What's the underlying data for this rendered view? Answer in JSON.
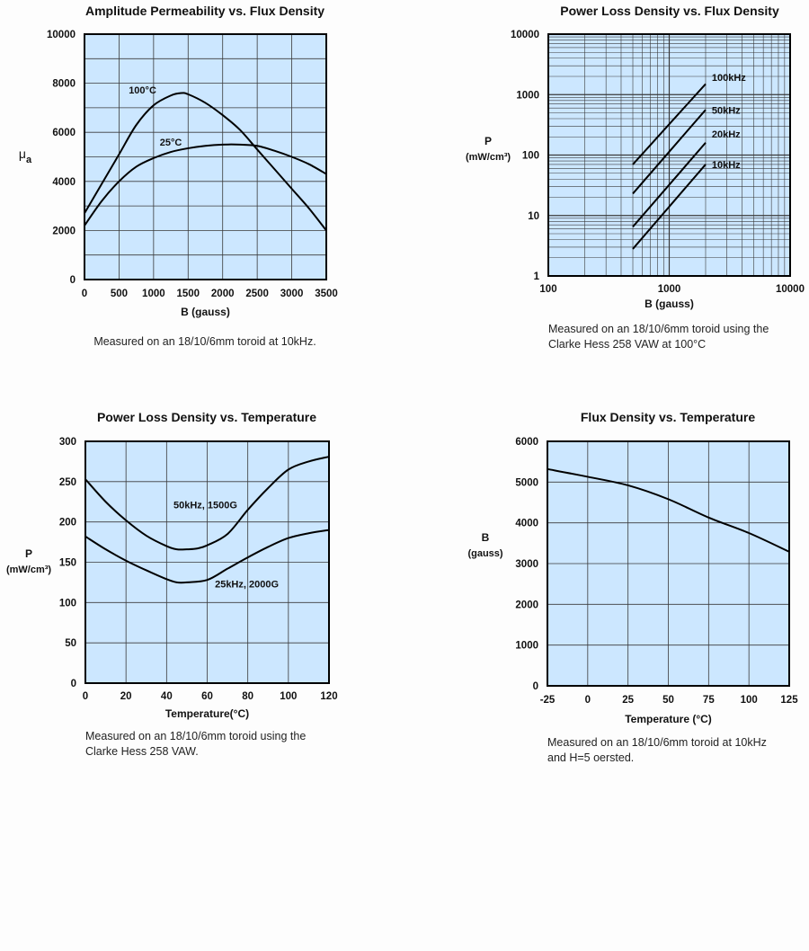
{
  "colors": {
    "plot_bg": "#cce7ff",
    "grid": "#3a3a3a",
    "curve": "#000000"
  },
  "chart_data": [
    {
      "type": "line",
      "title": "Amplitude  Permeability vs. Flux Density",
      "xlabel": "B (gauss)",
      "ylabel": "μ",
      "ylabel_sub": "a",
      "xlim": [
        0,
        3500
      ],
      "ylim": [
        0,
        10000
      ],
      "xticks": [
        0,
        500,
        1000,
        1500,
        2000,
        2500,
        3000,
        3500
      ],
      "yticks": [
        0,
        2000,
        4000,
        6000,
        8000,
        10000
      ],
      "xgrid_step": 500,
      "ygrid_step": 1000,
      "grid": true,
      "series": [
        {
          "name": "100°C",
          "x": [
            0,
            250,
            500,
            750,
            1000,
            1250,
            1400,
            1500,
            1750,
            2000,
            2250,
            2500,
            2750,
            3000,
            3250,
            3500
          ],
          "y": [
            2700,
            3900,
            5100,
            6300,
            7100,
            7500,
            7600,
            7550,
            7200,
            6700,
            6100,
            5300,
            4500,
            3700,
            2900,
            2000
          ]
        },
        {
          "name": "25°C",
          "x": [
            0,
            250,
            500,
            750,
            1000,
            1250,
            1500,
            1750,
            2000,
            2250,
            2500,
            2750,
            3000,
            3250,
            3500
          ],
          "y": [
            2200,
            3200,
            4000,
            4600,
            4950,
            5200,
            5350,
            5450,
            5500,
            5500,
            5450,
            5250,
            5000,
            4700,
            4300
          ]
        }
      ],
      "annotations": [
        {
          "text": "100°C",
          "x": 640,
          "y": 7580
        },
        {
          "text": "25°C",
          "x": 1090,
          "y": 5460
        }
      ],
      "caption": [
        "Measured on an 18/10/6mm toroid at 10kHz."
      ]
    },
    {
      "type": "line",
      "title": "Power Loss Density vs. Flux Density",
      "xlabel": "B (gauss)",
      "ylabel": "P",
      "ylabel_unit": "(mW/cm³)",
      "xscale": "log",
      "yscale": "log",
      "xlim": [
        100,
        10000
      ],
      "ylim": [
        1,
        10000
      ],
      "xticks": [
        100,
        1000,
        10000
      ],
      "yticks": [
        1,
        10,
        100,
        1000,
        10000
      ],
      "grid": true,
      "series": [
        {
          "name": "100kHz",
          "x": [
            500,
            2000
          ],
          "y": [
            70,
            1500
          ]
        },
        {
          "name": "50kHz",
          "x": [
            500,
            2000
          ],
          "y": [
            23,
            560
          ]
        },
        {
          "name": "20kHz",
          "x": [
            500,
            2000
          ],
          "y": [
            6.5,
            160
          ]
        },
        {
          "name": "10kHz",
          "x": [
            500,
            2000
          ],
          "y": [
            2.8,
            70
          ]
        }
      ],
      "annotations": [
        {
          "text": "100kHz",
          "x": 2250,
          "y": 1700
        },
        {
          "text": "50kHz",
          "x": 2250,
          "y": 480
        },
        {
          "text": "20kHz",
          "x": 2250,
          "y": 195
        },
        {
          "text": "10kHz",
          "x": 2250,
          "y": 61
        }
      ],
      "caption": [
        "Measured on an 18/10/6mm toroid using the",
        "Clarke Hess 258 VAW at 100°C"
      ]
    },
    {
      "type": "line",
      "title": "Power Loss Density vs. Temperature",
      "xlabel": "Temperature(°C)",
      "ylabel": "P",
      "ylabel_unit": "(mW/cm³)",
      "xlim": [
        0,
        120
      ],
      "ylim": [
        0,
        300
      ],
      "xticks": [
        0,
        20,
        40,
        60,
        80,
        100,
        120
      ],
      "yticks": [
        0,
        50,
        100,
        150,
        200,
        250,
        300
      ],
      "xgrid_step": 20,
      "ygrid_step": 50,
      "grid": true,
      "series": [
        {
          "name": "50kHz, 1500G",
          "x": [
            0,
            10,
            20,
            30,
            40,
            45,
            50,
            55,
            60,
            70,
            80,
            90,
            100,
            110,
            120
          ],
          "y": [
            253,
            225,
            202,
            183,
            170,
            166,
            166,
            167,
            171,
            185,
            215,
            242,
            265,
            275,
            281
          ]
        },
        {
          "name": "25kHz, 2000G",
          "x": [
            0,
            10,
            20,
            30,
            40,
            45,
            50,
            60,
            70,
            80,
            90,
            100,
            110,
            120
          ],
          "y": [
            182,
            166,
            152,
            140,
            129,
            125,
            125,
            128,
            142,
            156,
            169,
            180,
            186,
            190
          ]
        }
      ],
      "annotations": [
        {
          "text": "50kHz, 1500G",
          "x": 43.4,
          "y": 217
        },
        {
          "text": "25kHz, 2000G",
          "x": 63.8,
          "y": 119
        }
      ],
      "caption": [
        "Measured on an 18/10/6mm  toroid using the",
        "Clarke Hess 258 VAW."
      ]
    },
    {
      "type": "line",
      "title": "Flux Density vs. Temperature",
      "xlabel": "Temperature (°C)",
      "ylabel": "B",
      "ylabel_unit": "(gauss)",
      "xlim": [
        -25,
        125
      ],
      "ylim": [
        0,
        6000
      ],
      "xticks": [
        -25,
        0,
        25,
        50,
        75,
        100,
        125
      ],
      "yticks": [
        0,
        1000,
        2000,
        3000,
        4000,
        5000,
        6000
      ],
      "xgrid_step": 25,
      "ygrid_step": 1000,
      "grid": true,
      "series": [
        {
          "x": [
            -25,
            0,
            25,
            50,
            75,
            100,
            125
          ],
          "y": [
            5320,
            5130,
            4920,
            4580,
            4130,
            3750,
            3290
          ]
        }
      ],
      "annotations": [],
      "caption": [
        "Measured on an 18/10/6mm toroid at 10kHz",
        "and  H=5 oersted."
      ]
    }
  ]
}
